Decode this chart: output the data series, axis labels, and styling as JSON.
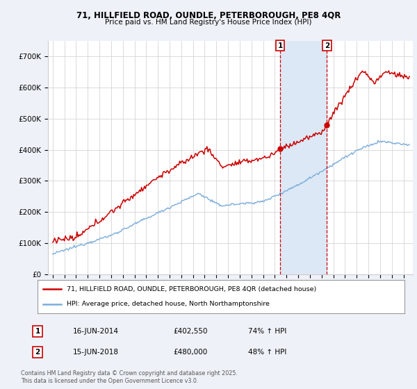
{
  "title_line1": "71, HILLFIELD ROAD, OUNDLE, PETERBOROUGH, PE8 4QR",
  "title_line2": "Price paid vs. HM Land Registry's House Price Index (HPI)",
  "ylim": [
    0,
    750000
  ],
  "yticks": [
    0,
    100000,
    200000,
    300000,
    400000,
    500000,
    600000,
    700000
  ],
  "ytick_labels": [
    "£0",
    "£100K",
    "£200K",
    "£300K",
    "£400K",
    "£500K",
    "£600K",
    "£700K"
  ],
  "background_color": "#eef2f8",
  "plot_bg_color": "#ffffff",
  "red_line_color": "#cc0000",
  "blue_line_color": "#7aacdc",
  "shade_color": "#dce8f5",
  "marker1_date_x": 2014.46,
  "marker1_y": 402550,
  "marker2_date_x": 2018.46,
  "marker2_y": 480000,
  "legend_red_label": "71, HILLFIELD ROAD, OUNDLE, PETERBOROUGH, PE8 4QR (detached house)",
  "legend_blue_label": "HPI: Average price, detached house, North Northamptonshire",
  "table_row1": [
    "1",
    "16-JUN-2014",
    "£402,550",
    "74% ↑ HPI"
  ],
  "table_row2": [
    "2",
    "15-JUN-2018",
    "£480,000",
    "48% ↑ HPI"
  ],
  "footer": "Contains HM Land Registry data © Crown copyright and database right 2025.\nThis data is licensed under the Open Government Licence v3.0.",
  "grid_color": "#cccccc",
  "vline_color": "#cc0000",
  "xlim_left": 1994.6,
  "xlim_right": 2025.8
}
